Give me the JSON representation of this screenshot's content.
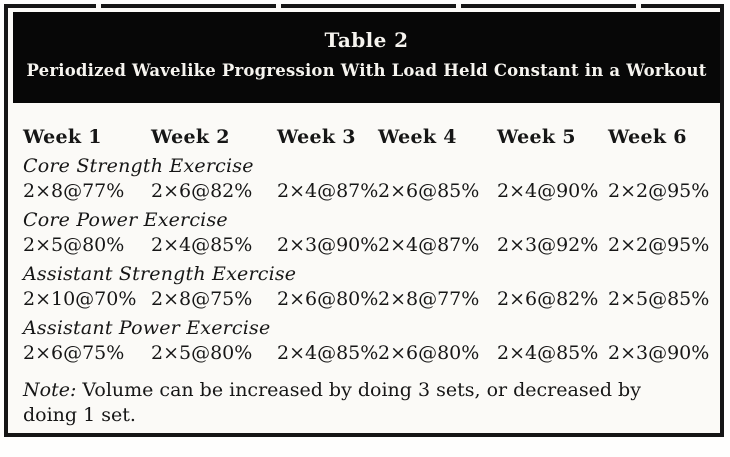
{
  "header": {
    "title": "Table 2",
    "subtitle": "Periodized Wavelike Progression With Load Held Constant in a Workout"
  },
  "columns": [
    "Week 1",
    "Week 2",
    "Week 3",
    "Week 4",
    "Week 5",
    "Week 6"
  ],
  "sections": [
    {
      "name": "Core Strength Exercise",
      "values": [
        "2×8@77%",
        "2×6@82%",
        "2×4@87%",
        "2×6@85%",
        "2×4@90%",
        "2×2@95%"
      ]
    },
    {
      "name": "Core Power Exercise",
      "values": [
        "2×5@80%",
        "2×4@85%",
        "2×3@90%",
        "2×4@87%",
        "2×3@92%",
        "2×2@95%"
      ]
    },
    {
      "name": "Assistant Strength Exercise",
      "values": [
        "2×10@70%",
        "2×8@75%",
        "2×6@80%",
        "2×8@77%",
        "2×6@82%",
        "2×5@85%"
      ]
    },
    {
      "name": "Assistant Power Exercise",
      "values": [
        "2×6@75%",
        "2×5@80%",
        "2×4@85%",
        "2×6@80%",
        "2×4@85%",
        "2×3@90%"
      ]
    }
  ],
  "note": {
    "label": "Note:",
    "text": " Volume can be increased by doing 3 sets, or decreased by doing 1 set."
  },
  "colors": {
    "banner_background": "#070707",
    "banner_text": "#f6f4ef",
    "body_text": "#161616",
    "table_background": "#fbfaf7",
    "border": "#151515"
  }
}
